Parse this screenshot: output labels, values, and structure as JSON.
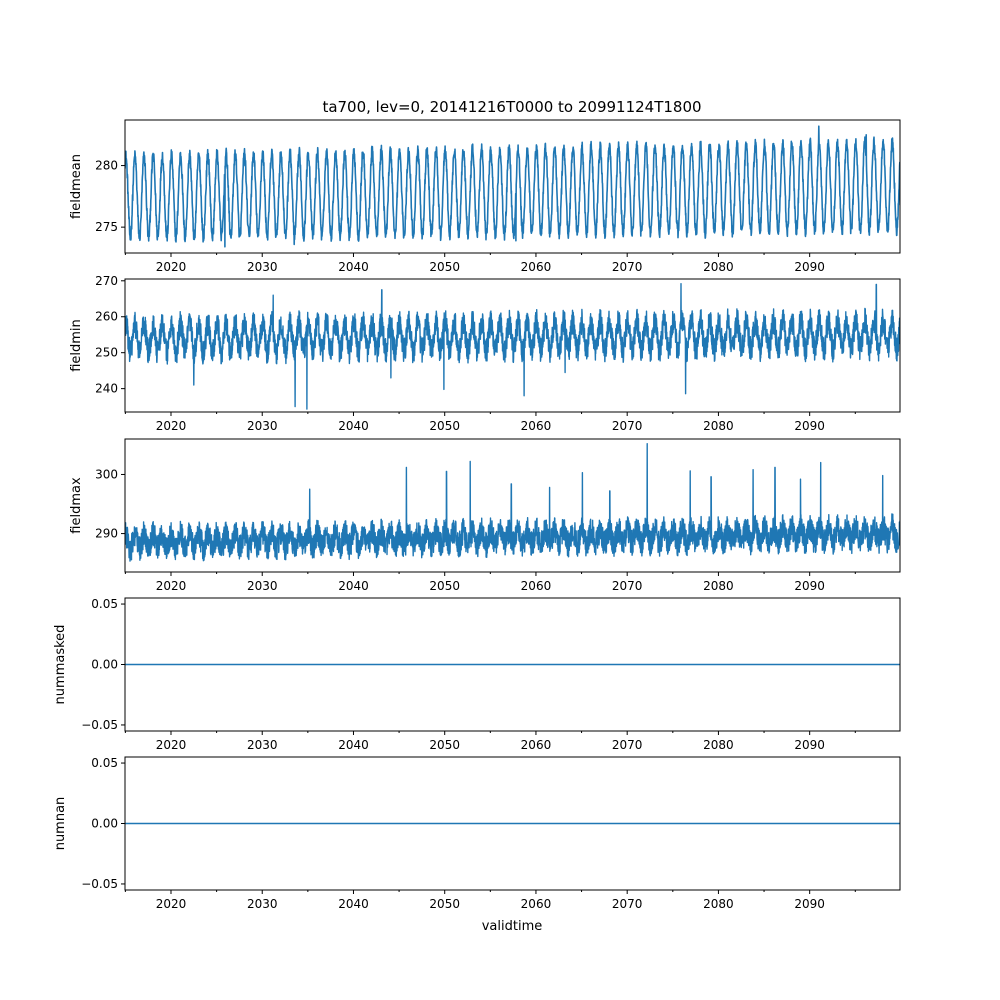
{
  "title": "ta700, lev=0, 20141216T0000 to 20991124T1800",
  "xlabel": "validtime",
  "colors": {
    "line": "#1f77b4",
    "axes": "#000000",
    "background": "#ffffff"
  },
  "chart_data": [
    {
      "type": "line",
      "ylabel": "fieldmean",
      "xlim": [
        2014.96,
        2099.9
      ],
      "ylim": [
        272.9,
        283.7
      ],
      "x_major_ticks": [
        2020,
        2030,
        2040,
        2050,
        2060,
        2070,
        2080,
        2090
      ],
      "x_tick_labels": [
        "2020",
        "2030",
        "2040",
        "2050",
        "2060",
        "2070",
        "2080",
        "2090"
      ],
      "y_ticks": [
        275,
        280
      ],
      "y_tick_labels": [
        "275",
        "280"
      ],
      "series": [
        {
          "start": 2014.96,
          "end": 2099.9,
          "kind": "seasonal",
          "mean": 277.9,
          "amplitude": 3.3,
          "amplitude_growth": 0.3,
          "trend": 0.9,
          "noise": 0.5,
          "spikes": [
            [
              2033.5,
              273.6
            ],
            [
              2057.8,
              273.9
            ],
            [
              2091.0,
              283.2
            ],
            [
              2096.2,
              282.5
            ],
            [
              2025.9,
              273.4
            ]
          ]
        }
      ]
    },
    {
      "type": "line",
      "ylabel": "fieldmin",
      "xlim": [
        2014.96,
        2099.9
      ],
      "ylim": [
        233.5,
        270.5
      ],
      "x_major_ticks": [
        2020,
        2030,
        2040,
        2050,
        2060,
        2070,
        2080,
        2090
      ],
      "x_tick_labels": [
        "2020",
        "2030",
        "2040",
        "2050",
        "2060",
        "2070",
        "2080",
        "2090"
      ],
      "y_ticks": [
        240,
        250,
        260,
        270
      ],
      "y_tick_labels": [
        "240",
        "250",
        "260",
        "270"
      ],
      "series": [
        {
          "start": 2014.96,
          "end": 2099.9,
          "kind": "band",
          "mean": 254.5,
          "amplitude": 4.0,
          "amplitude_growth": 0.0,
          "trend": 1.0,
          "noise": 3.5,
          "spikes": [
            [
              2033.6,
              235.0
            ],
            [
              2034.9,
              234.3
            ],
            [
              2022.5,
              241.0
            ],
            [
              2049.9,
              239.8
            ],
            [
              2058.7,
              238.0
            ],
            [
              2076.4,
              238.6
            ],
            [
              2044.1,
              243.0
            ],
            [
              2063.2,
              244.5
            ],
            [
              2075.9,
              269.2
            ],
            [
              2097.3,
              269.0
            ],
            [
              2043.1,
              267.5
            ],
            [
              2031.2,
              266.0
            ]
          ]
        }
      ]
    },
    {
      "type": "line",
      "ylabel": "fieldmax",
      "xlim": [
        2014.96,
        2099.9
      ],
      "ylim": [
        283.5,
        306.0
      ],
      "x_major_ticks": [
        2020,
        2030,
        2040,
        2050,
        2060,
        2070,
        2080,
        2090
      ],
      "x_tick_labels": [
        "2020",
        "2030",
        "2040",
        "2050",
        "2060",
        "2070",
        "2080",
        "2090"
      ],
      "y_ticks": [
        290,
        300
      ],
      "y_tick_labels": [
        "290",
        "300"
      ],
      "series": [
        {
          "start": 2014.96,
          "end": 2099.9,
          "kind": "band",
          "mean": 289.3,
          "amplitude": 1.2,
          "amplitude_growth": 0.0,
          "trend": 1.4,
          "noise": 2.2,
          "spikes": [
            [
              2072.2,
              305.2
            ],
            [
              2045.8,
              301.2
            ],
            [
              2052.8,
              302.2
            ],
            [
              2050.2,
              300.5
            ],
            [
              2065.1,
              300.3
            ],
            [
              2076.9,
              300.6
            ],
            [
              2083.8,
              300.8
            ],
            [
              2086.2,
              301.2
            ],
            [
              2091.2,
              302.0
            ],
            [
              2098.0,
              299.8
            ],
            [
              2079.2,
              299.6
            ],
            [
              2089.0,
              299.2
            ],
            [
              2035.2,
              297.5
            ],
            [
              2057.3,
              298.4
            ],
            [
              2061.5,
              297.8
            ],
            [
              2068.1,
              297.2
            ]
          ]
        }
      ]
    },
    {
      "type": "line",
      "ylabel": "nummasked",
      "xlim": [
        2014.96,
        2099.9
      ],
      "ylim": [
        -0.055,
        0.055
      ],
      "x_major_ticks": [
        2020,
        2030,
        2040,
        2050,
        2060,
        2070,
        2080,
        2090
      ],
      "x_tick_labels": [
        "2020",
        "2030",
        "2040",
        "2050",
        "2060",
        "2070",
        "2080",
        "2090"
      ],
      "y_ticks": [
        -0.05,
        0.0,
        0.05
      ],
      "y_tick_labels": [
        "−0.05",
        "0.00",
        "0.05"
      ],
      "series": [
        {
          "start": 2014.96,
          "end": 2099.9,
          "kind": "constant",
          "value": 0.0
        }
      ]
    },
    {
      "type": "line",
      "ylabel": "numnan",
      "xlim": [
        2014.96,
        2099.9
      ],
      "ylim": [
        -0.055,
        0.055
      ],
      "x_major_ticks": [
        2020,
        2030,
        2040,
        2050,
        2060,
        2070,
        2080,
        2090
      ],
      "x_tick_labels": [
        "2020",
        "2030",
        "2040",
        "2050",
        "2060",
        "2070",
        "2080",
        "2090"
      ],
      "y_ticks": [
        -0.05,
        0.0,
        0.05
      ],
      "y_tick_labels": [
        "−0.05",
        "0.00",
        "0.05"
      ],
      "series": [
        {
          "start": 2014.96,
          "end": 2099.9,
          "kind": "constant",
          "value": 0.0
        }
      ]
    }
  ]
}
